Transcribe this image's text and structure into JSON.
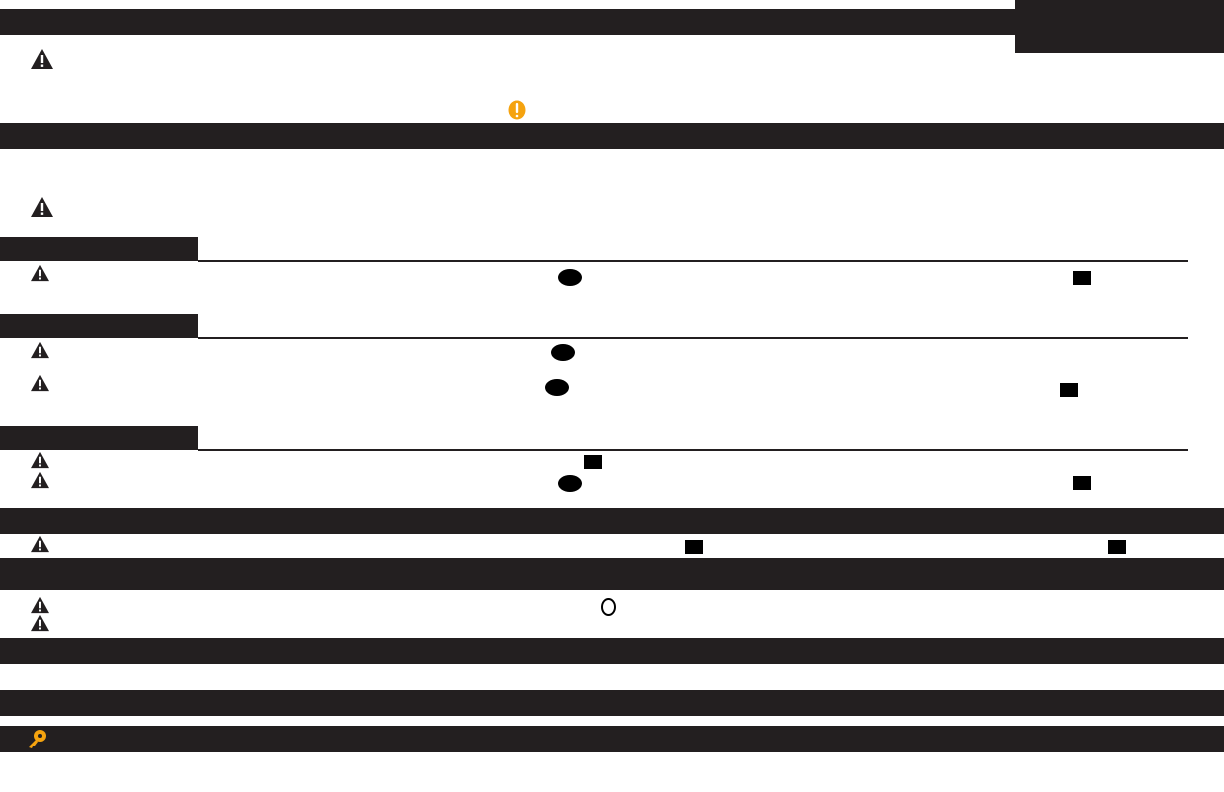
{
  "colors": {
    "band": "#231f20",
    "caution": "#f5a30f",
    "page": "#ffffff"
  },
  "icons": {
    "warning": "warning-triangle-icon",
    "caution": "caution-exclamation-icon",
    "note": "oval-marker-icon",
    "square": "square-marker-icon",
    "ring": "circle-outline-icon",
    "tip": "key-tip-icon"
  }
}
